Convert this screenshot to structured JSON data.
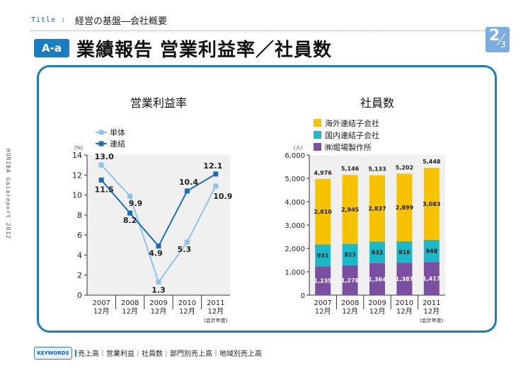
{
  "header": {
    "title_label": "Title :",
    "title_text": "経営の基盤―会社概要",
    "section_badge": "A-a",
    "section_heading": "業績報告 営業利益率／社員数",
    "page_num": "2",
    "page_den": "3"
  },
  "side_text": "HORIBA Gaiareport 2012",
  "keywords": {
    "badge": "KEYWORDS",
    "items": "売上高｜営業利益｜社員数｜部門別売上高｜地域別売上高"
  },
  "colors": {
    "accent": "#1a7dc0",
    "single": "#8ec4ea",
    "consolidated": "#1a6db8",
    "plot_bg": "#f0f0f0",
    "overseas": "#f7c300",
    "domestic": "#1cb8c8",
    "horiba": "#7a4ea0"
  },
  "chart_data": [
    {
      "type": "line",
      "title": "営業利益率",
      "unit_label": "(%)",
      "categories": [
        [
          "2007",
          "12月"
        ],
        [
          "2008",
          "12月"
        ],
        [
          "2009",
          "12月"
        ],
        [
          "2010",
          "12月"
        ],
        [
          "2011",
          "12月"
        ]
      ],
      "x_note": "(会計年度)",
      "ylim": [
        0,
        14
      ],
      "yticks": [
        0,
        2,
        4,
        6,
        8,
        10,
        12,
        14
      ],
      "grid": false,
      "legend": "top-left",
      "series": [
        {
          "name": "単体",
          "values": [
            13.0,
            9.9,
            1.3,
            5.3,
            10.9
          ],
          "labels": [
            "13.0",
            "9.9",
            "1.3",
            "5.3",
            "10.9"
          ]
        },
        {
          "name": "連結",
          "values": [
            11.5,
            8.2,
            4.9,
            10.4,
            12.1
          ],
          "labels": [
            "11.5",
            "8.2",
            "4.9",
            "10.4",
            "12.1"
          ]
        }
      ]
    },
    {
      "type": "bar",
      "stacked": true,
      "title": "社員数",
      "unit_label": "(人)",
      "categories": [
        [
          "2007",
          "12月"
        ],
        [
          "2008",
          "12月"
        ],
        [
          "2009",
          "12月"
        ],
        [
          "2010",
          "12月"
        ],
        [
          "2011",
          "12月"
        ]
      ],
      "x_note": "(会計年度)",
      "ylim": [
        0,
        6000
      ],
      "yticks": [
        0,
        1000,
        2000,
        3000,
        4000,
        5000,
        6000
      ],
      "ytick_labels": [
        "0",
        "1,000",
        "2,000",
        "3,000",
        "4,000",
        "5,000",
        "6,000"
      ],
      "grid": false,
      "legend": "top-left",
      "series": [
        {
          "name": "㈱堀場製作所",
          "values": [
            1235,
            1278,
            1364,
            1387,
            1417
          ],
          "labels": [
            "1,235",
            "1,278",
            "1,364",
            "1,387",
            "1,417"
          ]
        },
        {
          "name": "国内連結子会社",
          "values": [
            931,
            923,
            932,
            916,
            948
          ],
          "labels": [
            "931",
            "923",
            "932",
            "916",
            "948"
          ]
        },
        {
          "name": "海外連結子会社",
          "values": [
            2810,
            2945,
            2837,
            2899,
            3083
          ],
          "labels": [
            "2,810",
            "2,945",
            "2,837",
            "2,899",
            "3,083"
          ]
        }
      ],
      "legend_order": [
        2,
        1,
        0
      ],
      "totals": [
        4976,
        5146,
        5133,
        5202,
        5448
      ],
      "total_labels": [
        "4,976",
        "5,146",
        "5,133",
        "5,202",
        "5,448"
      ]
    }
  ]
}
